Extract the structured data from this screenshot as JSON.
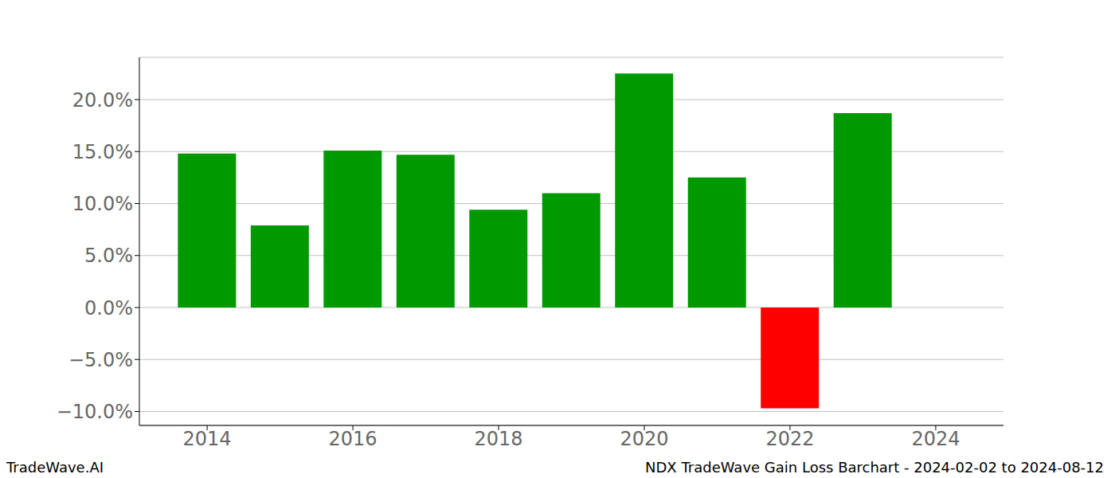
{
  "chart_data": {
    "type": "bar",
    "x": [
      2014,
      2015,
      2016,
      2017,
      2018,
      2019,
      2020,
      2021,
      2022,
      2023
    ],
    "values": [
      14.8,
      7.9,
      15.1,
      14.7,
      9.4,
      11.0,
      22.5,
      12.5,
      -9.7,
      18.7
    ],
    "colors": [
      "#009900",
      "#009900",
      "#009900",
      "#009900",
      "#009900",
      "#009900",
      "#009900",
      "#009900",
      "#ff0000",
      "#009900"
    ],
    "xlim": [
      2013.07,
      2024.93
    ],
    "xticks": [
      2014,
      2016,
      2018,
      2020,
      2022,
      2024
    ],
    "ylim": [
      -11.34,
      24.06
    ],
    "yticks": [
      {
        "value": -10,
        "label": "−10.0%"
      },
      {
        "value": -5,
        "label": "−5.0%"
      },
      {
        "value": 0,
        "label": "0.0%"
      },
      {
        "value": 5,
        "label": "5.0%"
      },
      {
        "value": 10,
        "label": "10.0%"
      },
      {
        "value": 15,
        "label": "15.0%"
      },
      {
        "value": 20,
        "label": "20.0%"
      }
    ],
    "grid": true,
    "annotations": [
      "TradeWave.AI",
      "NDX TradeWave Gain Loss Barchart - 2024-02-02 to 2024-08-12"
    ]
  }
}
